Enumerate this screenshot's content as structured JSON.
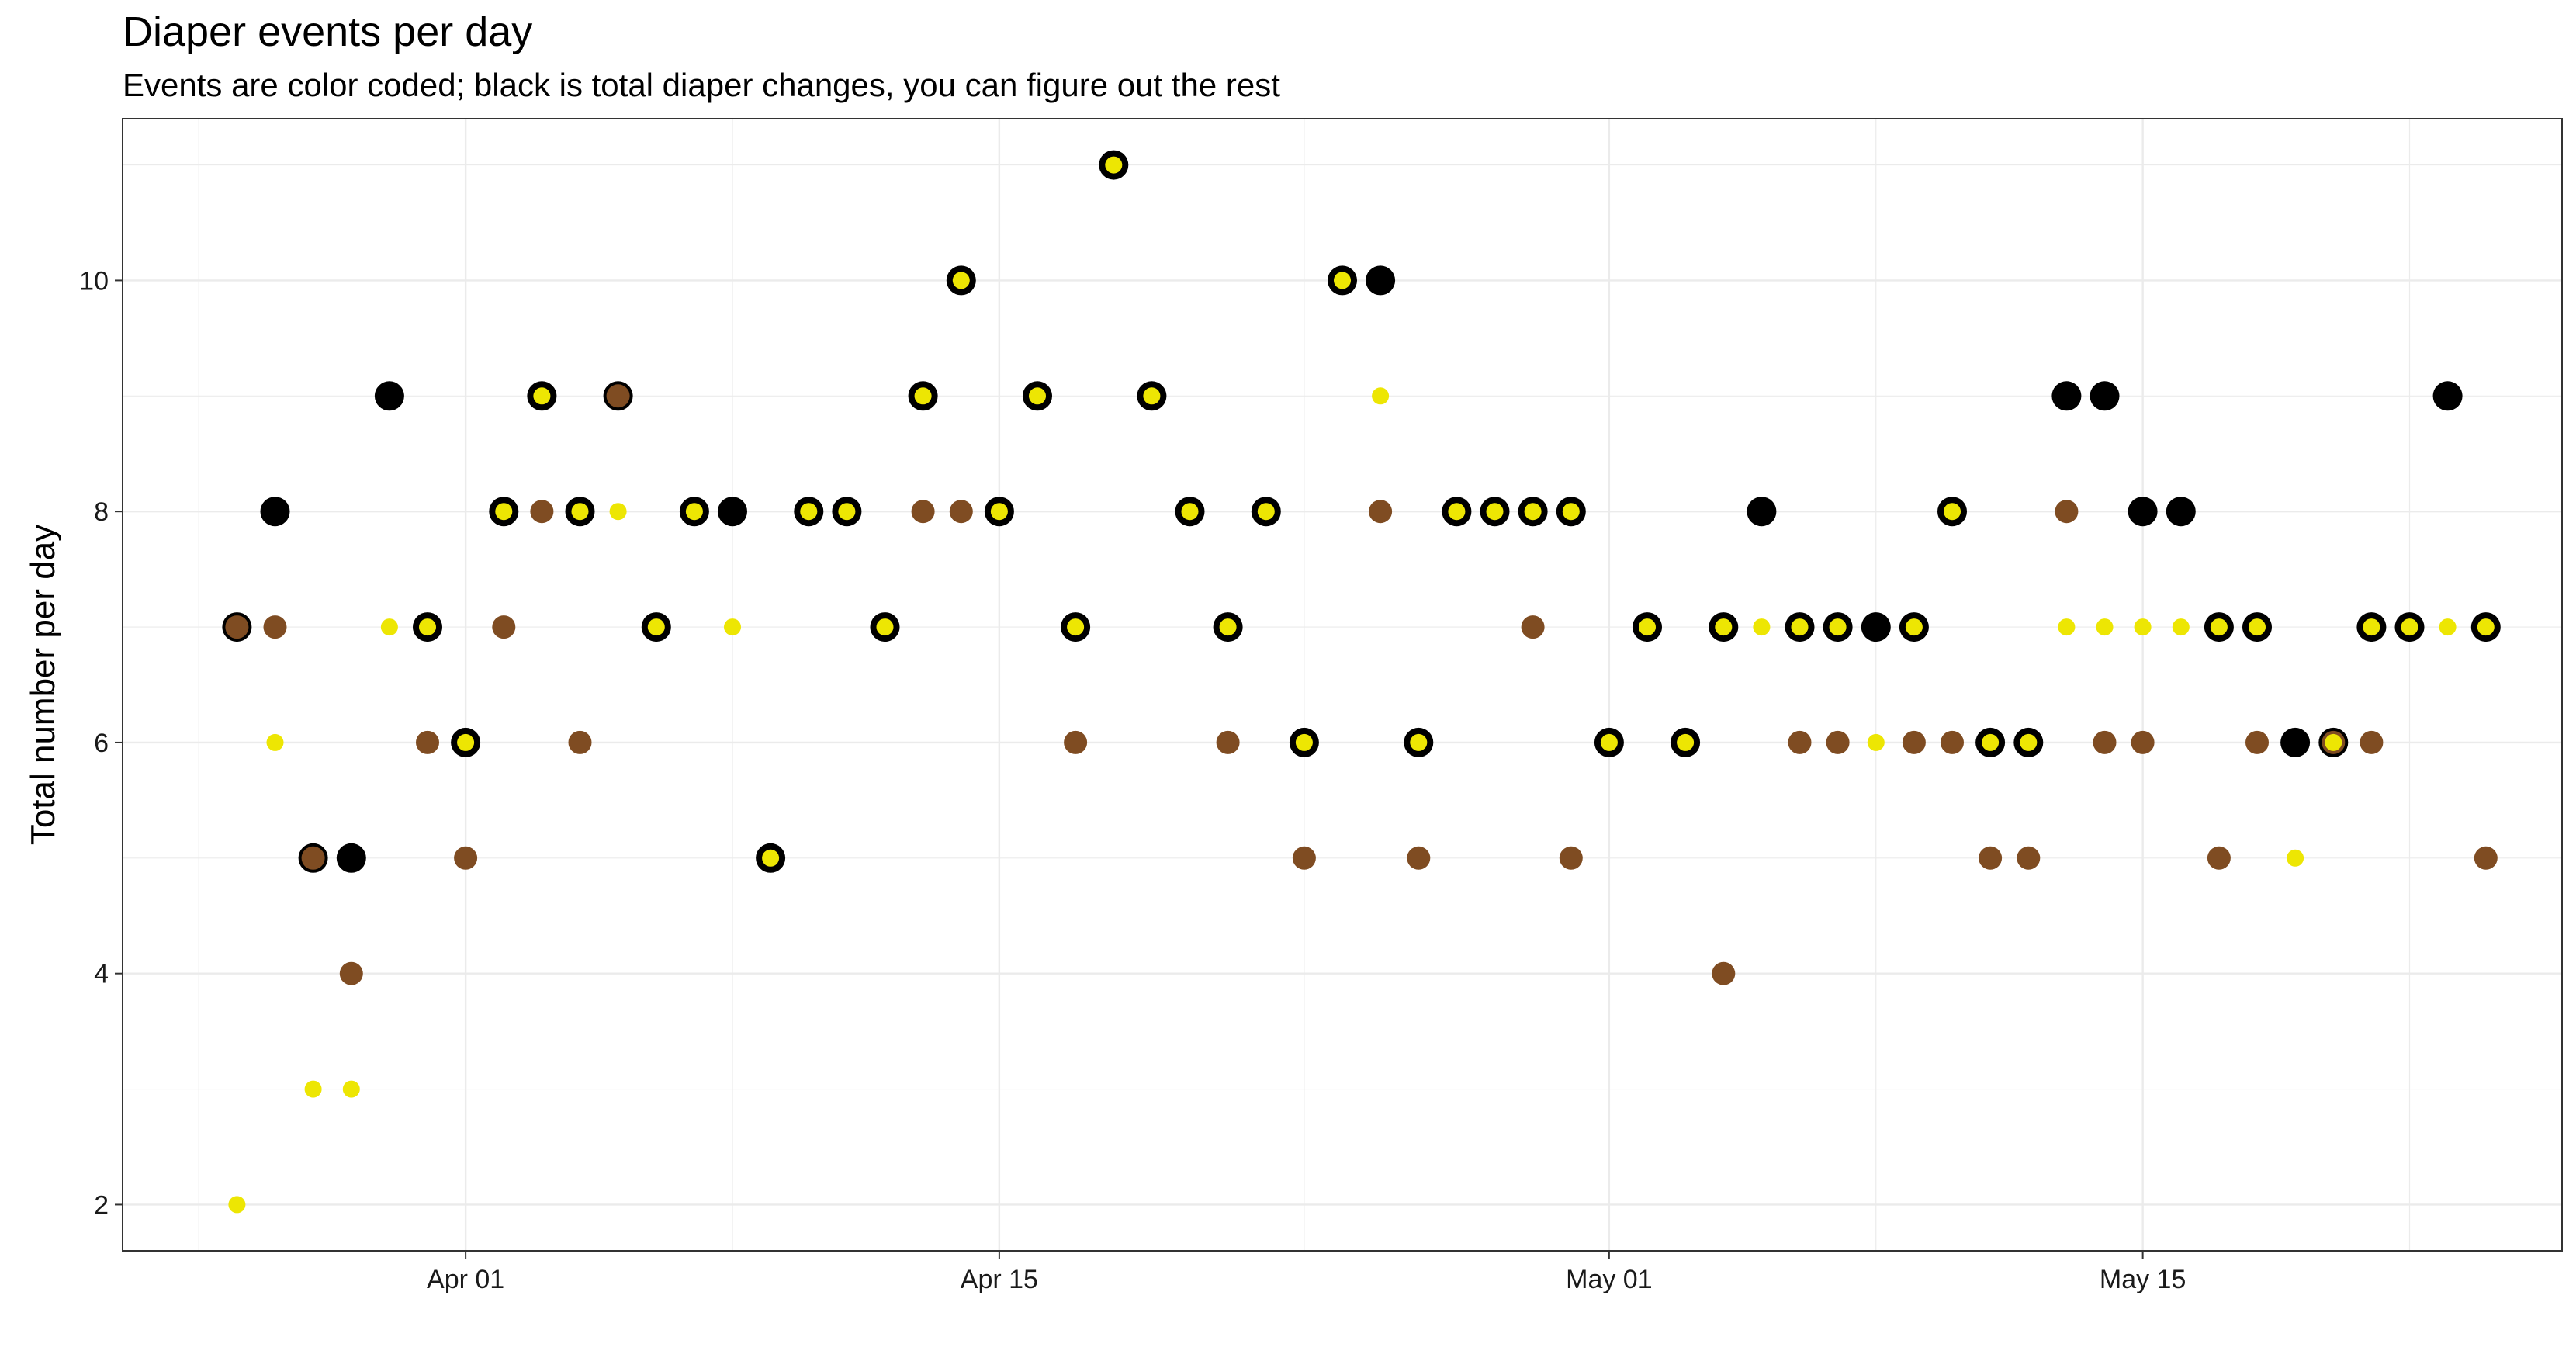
{
  "chart_data": {
    "type": "scatter",
    "title": "Diaper events per day",
    "subtitle": "Events are color coded; black is total diaper changes, you can figure out the rest",
    "xlabel": "",
    "ylabel": "Total number per day",
    "xlim": [
      "2020-03-23",
      "2020-05-26"
    ],
    "ylim": [
      1.6,
      11.4
    ],
    "x_ticks": [
      {
        "date": "2020-04-01",
        "label": "Apr 01"
      },
      {
        "date": "2020-04-15",
        "label": "Apr 15"
      },
      {
        "date": "2020-05-01",
        "label": "May 01"
      },
      {
        "date": "2020-05-15",
        "label": "May 15"
      }
    ],
    "y_ticks": [
      2,
      4,
      6,
      8,
      10
    ],
    "grid": true,
    "colors": {
      "total": "#000000",
      "poop": "#7f4c22",
      "pee": "#ede603",
      "grid": "#ebebeb",
      "frame": "#333333"
    },
    "series": [
      {
        "key": "total",
        "points": [
          [
            "2020-03-26",
            7
          ],
          [
            "2020-03-27",
            8
          ],
          [
            "2020-03-28",
            5
          ],
          [
            "2020-03-29",
            5
          ],
          [
            "2020-03-30",
            9
          ],
          [
            "2020-03-31",
            7
          ],
          [
            "2020-04-01",
            6
          ],
          [
            "2020-04-02",
            8
          ],
          [
            "2020-04-03",
            9
          ],
          [
            "2020-04-04",
            8
          ],
          [
            "2020-04-05",
            9
          ],
          [
            "2020-04-06",
            7
          ],
          [
            "2020-04-07",
            8
          ],
          [
            "2020-04-08",
            8
          ],
          [
            "2020-04-09",
            5
          ],
          [
            "2020-04-10",
            8
          ],
          [
            "2020-04-11",
            8
          ],
          [
            "2020-04-12",
            7
          ],
          [
            "2020-04-13",
            9
          ],
          [
            "2020-04-14",
            10
          ],
          [
            "2020-04-15",
            8
          ],
          [
            "2020-04-16",
            9
          ],
          [
            "2020-04-17",
            7
          ],
          [
            "2020-04-18",
            11
          ],
          [
            "2020-04-19",
            9
          ],
          [
            "2020-04-20",
            8
          ],
          [
            "2020-04-21",
            7
          ],
          [
            "2020-04-22",
            8
          ],
          [
            "2020-04-23",
            6
          ],
          [
            "2020-04-24",
            10
          ],
          [
            "2020-04-25",
            10
          ],
          [
            "2020-04-26",
            6
          ],
          [
            "2020-04-27",
            8
          ],
          [
            "2020-04-28",
            8
          ],
          [
            "2020-04-29",
            8
          ],
          [
            "2020-04-30",
            8
          ],
          [
            "2020-05-01",
            6
          ],
          [
            "2020-05-02",
            7
          ],
          [
            "2020-05-03",
            6
          ],
          [
            "2020-05-04",
            7
          ],
          [
            "2020-05-05",
            8
          ],
          [
            "2020-05-06",
            7
          ],
          [
            "2020-05-07",
            7
          ],
          [
            "2020-05-08",
            7
          ],
          [
            "2020-05-09",
            7
          ],
          [
            "2020-05-10",
            8
          ],
          [
            "2020-05-11",
            6
          ],
          [
            "2020-05-12",
            6
          ],
          [
            "2020-05-13",
            9
          ],
          [
            "2020-05-14",
            9
          ],
          [
            "2020-05-15",
            8
          ],
          [
            "2020-05-16",
            8
          ],
          [
            "2020-05-17",
            7
          ],
          [
            "2020-05-18",
            7
          ],
          [
            "2020-05-19",
            6
          ],
          [
            "2020-05-20",
            6
          ],
          [
            "2020-05-21",
            7
          ],
          [
            "2020-05-22",
            7
          ],
          [
            "2020-05-23",
            9
          ],
          [
            "2020-05-24",
            7
          ]
        ]
      },
      {
        "key": "poop",
        "points": [
          [
            "2020-03-26",
            7
          ],
          [
            "2020-03-27",
            7
          ],
          [
            "2020-03-28",
            5
          ],
          [
            "2020-03-29",
            4
          ],
          [
            "2020-03-31",
            6
          ],
          [
            "2020-04-01",
            5
          ],
          [
            "2020-04-02",
            7
          ],
          [
            "2020-04-03",
            8
          ],
          [
            "2020-04-04",
            6
          ],
          [
            "2020-04-05",
            9
          ],
          [
            "2020-04-13",
            8
          ],
          [
            "2020-04-14",
            8
          ],
          [
            "2020-04-17",
            6
          ],
          [
            "2020-04-21",
            6
          ],
          [
            "2020-04-23",
            5
          ],
          [
            "2020-04-25",
            8
          ],
          [
            "2020-04-26",
            5
          ],
          [
            "2020-04-29",
            7
          ],
          [
            "2020-04-30",
            5
          ],
          [
            "2020-05-04",
            4
          ],
          [
            "2020-05-06",
            6
          ],
          [
            "2020-05-07",
            6
          ],
          [
            "2020-05-09",
            6
          ],
          [
            "2020-05-10",
            6
          ],
          [
            "2020-05-11",
            5
          ],
          [
            "2020-05-12",
            5
          ],
          [
            "2020-05-13",
            8
          ],
          [
            "2020-05-14",
            6
          ],
          [
            "2020-05-15",
            6
          ],
          [
            "2020-05-17",
            5
          ],
          [
            "2020-05-18",
            6
          ],
          [
            "2020-05-20",
            6
          ],
          [
            "2020-05-21",
            6
          ],
          [
            "2020-05-24",
            5
          ]
        ]
      },
      {
        "key": "pee",
        "points": [
          [
            "2020-03-26",
            2
          ],
          [
            "2020-03-27",
            6
          ],
          [
            "2020-03-28",
            3
          ],
          [
            "2020-03-29",
            3
          ],
          [
            "2020-03-30",
            7
          ],
          [
            "2020-03-31",
            7
          ],
          [
            "2020-04-01",
            6
          ],
          [
            "2020-04-02",
            8
          ],
          [
            "2020-04-03",
            9
          ],
          [
            "2020-04-04",
            8
          ],
          [
            "2020-04-05",
            8
          ],
          [
            "2020-04-06",
            7
          ],
          [
            "2020-04-07",
            8
          ],
          [
            "2020-04-08",
            7
          ],
          [
            "2020-04-09",
            5
          ],
          [
            "2020-04-10",
            8
          ],
          [
            "2020-04-11",
            8
          ],
          [
            "2020-04-12",
            7
          ],
          [
            "2020-04-13",
            9
          ],
          [
            "2020-04-14",
            10
          ],
          [
            "2020-04-15",
            8
          ],
          [
            "2020-04-16",
            9
          ],
          [
            "2020-04-17",
            7
          ],
          [
            "2020-04-18",
            11
          ],
          [
            "2020-04-19",
            9
          ],
          [
            "2020-04-20",
            8
          ],
          [
            "2020-04-21",
            7
          ],
          [
            "2020-04-22",
            8
          ],
          [
            "2020-04-23",
            6
          ],
          [
            "2020-04-24",
            10
          ],
          [
            "2020-04-25",
            9
          ],
          [
            "2020-04-26",
            6
          ],
          [
            "2020-04-27",
            8
          ],
          [
            "2020-04-28",
            8
          ],
          [
            "2020-04-29",
            8
          ],
          [
            "2020-04-30",
            8
          ],
          [
            "2020-05-01",
            6
          ],
          [
            "2020-05-02",
            7
          ],
          [
            "2020-05-03",
            6
          ],
          [
            "2020-05-04",
            7
          ],
          [
            "2020-05-05",
            7
          ],
          [
            "2020-05-06",
            7
          ],
          [
            "2020-05-07",
            7
          ],
          [
            "2020-05-08",
            6
          ],
          [
            "2020-05-09",
            7
          ],
          [
            "2020-05-10",
            8
          ],
          [
            "2020-05-11",
            6
          ],
          [
            "2020-05-12",
            6
          ],
          [
            "2020-05-13",
            7
          ],
          [
            "2020-05-14",
            7
          ],
          [
            "2020-05-15",
            7
          ],
          [
            "2020-05-16",
            7
          ],
          [
            "2020-05-17",
            7
          ],
          [
            "2020-05-18",
            7
          ],
          [
            "2020-05-19",
            5
          ],
          [
            "2020-05-20",
            6
          ],
          [
            "2020-05-21",
            7
          ],
          [
            "2020-05-22",
            7
          ],
          [
            "2020-05-23",
            7
          ],
          [
            "2020-05-24",
            7
          ]
        ]
      }
    ]
  }
}
